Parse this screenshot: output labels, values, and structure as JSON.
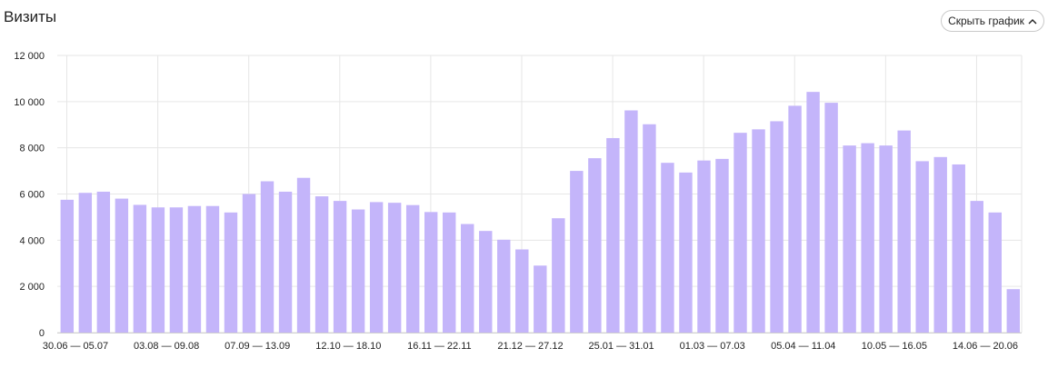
{
  "header": {
    "title": "Визиты",
    "hide_chart_label": "Скрыть график"
  },
  "icons": {
    "hide_chart_icon": "chevron-up-icon"
  },
  "colors": {
    "bar": "#c4b5fa",
    "grid": "#e6e6e6",
    "axis": "#cfcfcf"
  },
  "chart_data": {
    "type": "bar",
    "title": "Визиты",
    "xlabel": "",
    "ylabel": "",
    "ylim": [
      0,
      12000
    ],
    "y_ticks": [
      0,
      2000,
      4000,
      6000,
      8000,
      10000,
      12000
    ],
    "y_tick_labels": [
      "0",
      "2 000",
      "4 000",
      "6 000",
      "8 000",
      "10 000",
      "12 000"
    ],
    "x_tick_labels": [
      "30.06 — 05.07",
      "03.08 — 09.08",
      "07.09 — 13.09",
      "12.10 — 18.10",
      "16.11 — 22.11",
      "21.12 — 27.12",
      "25.01 — 31.01",
      "01.03 — 07.03",
      "05.04 — 11.04",
      "10.05 — 16.05",
      "14.06 — 20.06"
    ],
    "grid": true,
    "values": [
      5750,
      6050,
      6100,
      5800,
      5530,
      5420,
      5420,
      5480,
      5480,
      5200,
      6000,
      6550,
      6100,
      6700,
      5900,
      5700,
      5330,
      5650,
      5620,
      5520,
      5220,
      5200,
      4700,
      4400,
      4020,
      3600,
      2900,
      4950,
      7000,
      7550,
      8420,
      9620,
      9020,
      7350,
      6930,
      7450,
      7520,
      8650,
      8800,
      9150,
      9820,
      10420,
      9950,
      8100,
      8200,
      8100,
      8750,
      7420,
      7600,
      7280,
      5700,
      5200,
      1880
    ]
  }
}
